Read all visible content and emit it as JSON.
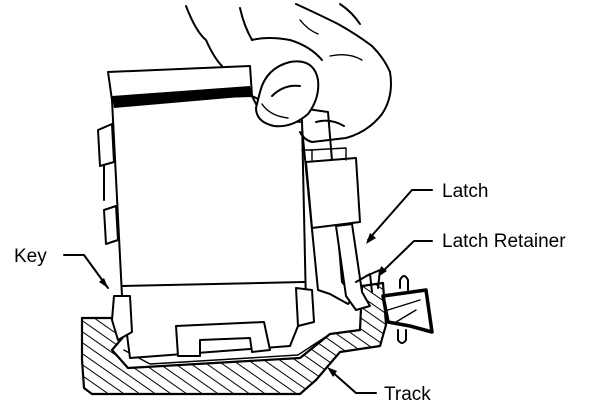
{
  "labels": {
    "key": "Key",
    "latch": "Latch",
    "latch_retainer": "Latch Retainer",
    "track": "Track"
  }
}
